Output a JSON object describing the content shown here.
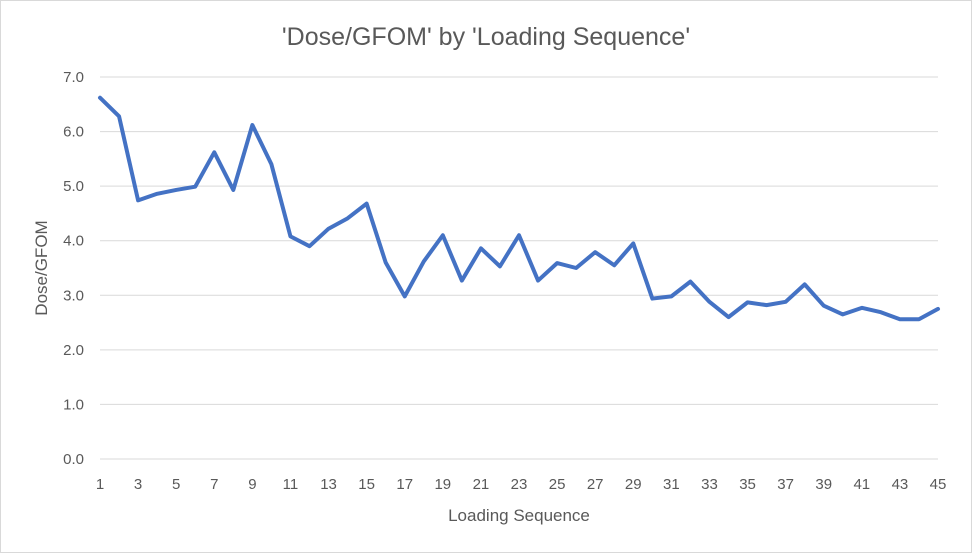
{
  "chart_data": {
    "type": "line",
    "title": "'Dose/GFOM' by 'Loading Sequence'",
    "xlabel": "Loading Sequence",
    "ylabel": "Dose/GFOM",
    "ylim": [
      0,
      7
    ],
    "yticks": [
      "0.0",
      "1.0",
      "2.0",
      "3.0",
      "4.0",
      "5.0",
      "6.0",
      "7.0"
    ],
    "xticks": [
      "1",
      "3",
      "5",
      "7",
      "9",
      "11",
      "13",
      "15",
      "17",
      "19",
      "21",
      "23",
      "25",
      "27",
      "29",
      "31",
      "33",
      "35",
      "37",
      "39",
      "41",
      "43",
      "45"
    ],
    "grid": "horizontal",
    "legend": "none",
    "line_color": "#4472c4",
    "x": [
      1,
      2,
      3,
      4,
      5,
      6,
      7,
      8,
      9,
      10,
      11,
      12,
      13,
      14,
      15,
      16,
      17,
      18,
      19,
      20,
      21,
      22,
      23,
      24,
      25,
      26,
      27,
      28,
      29,
      30,
      31,
      32,
      33,
      34,
      35,
      36,
      37,
      38,
      39,
      40,
      41,
      42,
      43,
      44,
      45
    ],
    "values": [
      6.62,
      6.28,
      4.74,
      4.86,
      4.93,
      4.99,
      5.62,
      4.93,
      6.12,
      5.4,
      4.08,
      3.9,
      4.22,
      4.41,
      4.68,
      3.6,
      2.98,
      3.62,
      4.1,
      3.27,
      3.86,
      3.53,
      4.1,
      3.27,
      3.59,
      3.5,
      3.79,
      3.55,
      3.95,
      2.94,
      2.98,
      3.25,
      2.88,
      2.6,
      2.87,
      2.82,
      2.88,
      3.2,
      2.81,
      2.65,
      2.77,
      2.69,
      2.56,
      2.56,
      2.75
    ]
  }
}
